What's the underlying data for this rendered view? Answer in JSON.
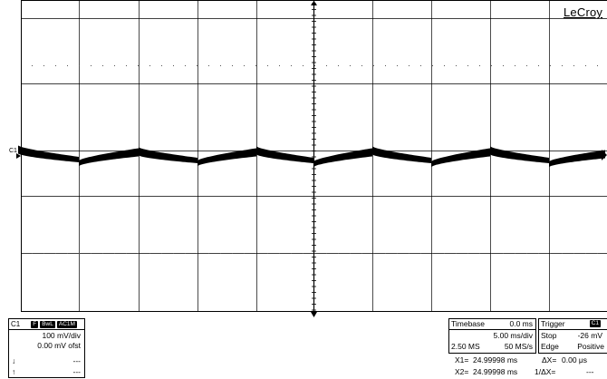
{
  "brand": "LeCroy",
  "channel_marker": "C1",
  "channel_panel": {
    "name": "C1",
    "tags": [
      "F",
      "BwL",
      "AC1M"
    ],
    "volts_per_div": "100 mV/div",
    "offset": "0.00 mV ofst",
    "row3_symbol": "↓",
    "row3_value": "---",
    "row4_symbol": "↑",
    "row4_value": "---"
  },
  "timebase_panel": {
    "title": "Timebase",
    "delay": "0.0 ms",
    "time_per_div": "5.00 ms/div",
    "samples": "2.50 MS",
    "sample_rate": "50 MS/s"
  },
  "trigger_panel": {
    "title": "Trigger",
    "source_badge": "C1",
    "mode": "Stop",
    "level": "-26 mV",
    "type": "Edge",
    "slope": "Positive"
  },
  "cursors": {
    "x1_label": "X1=",
    "x1_value": "24.99998 ms",
    "dx_label": "ΔX=",
    "dx_value": "0.00 μs",
    "x2_label": "X2=",
    "x2_value": "24.99998 ms",
    "inv_dx_label": "1/ΔX=",
    "inv_dx_value": "---"
  },
  "colors": {
    "grid": "#000000",
    "trace": "#000000",
    "background": "#ffffff"
  }
}
